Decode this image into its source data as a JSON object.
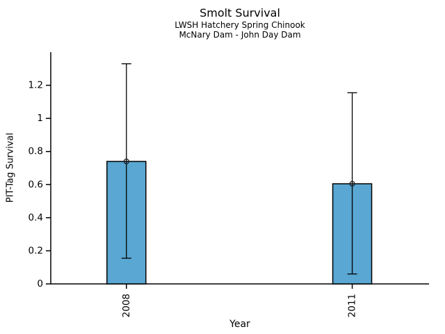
{
  "chart_data": {
    "type": "bar",
    "title": "Smolt Survival",
    "subtitle1": "LWSH Hatchery Spring Chinook",
    "subtitle2": "McNary Dam - John Day Dam",
    "xlabel": "Year",
    "ylabel": "PIT-Tag Survival",
    "categories": [
      "2008",
      "2011"
    ],
    "values": [
      0.74,
      0.605
    ],
    "error_low": [
      0.155,
      0.06
    ],
    "error_high": [
      1.33,
      1.155
    ],
    "ylim": [
      0,
      1.4
    ],
    "yticks": [
      0,
      0.2,
      0.4,
      0.6,
      0.8,
      1,
      1.2
    ],
    "ytick_labels": [
      "0",
      "0.2",
      "0.4",
      "0.6",
      "0.8",
      "1",
      "1.2"
    ],
    "marker": "open-circle",
    "grid": false,
    "legend": "none",
    "colors": {
      "bar_fill": "#59A7D2",
      "bar_edge": "#000000",
      "error_bar": "#000000",
      "marker_stroke": "#1a1a1a",
      "axis": "#000000",
      "text": "#000000",
      "background": "#ffffff"
    }
  }
}
